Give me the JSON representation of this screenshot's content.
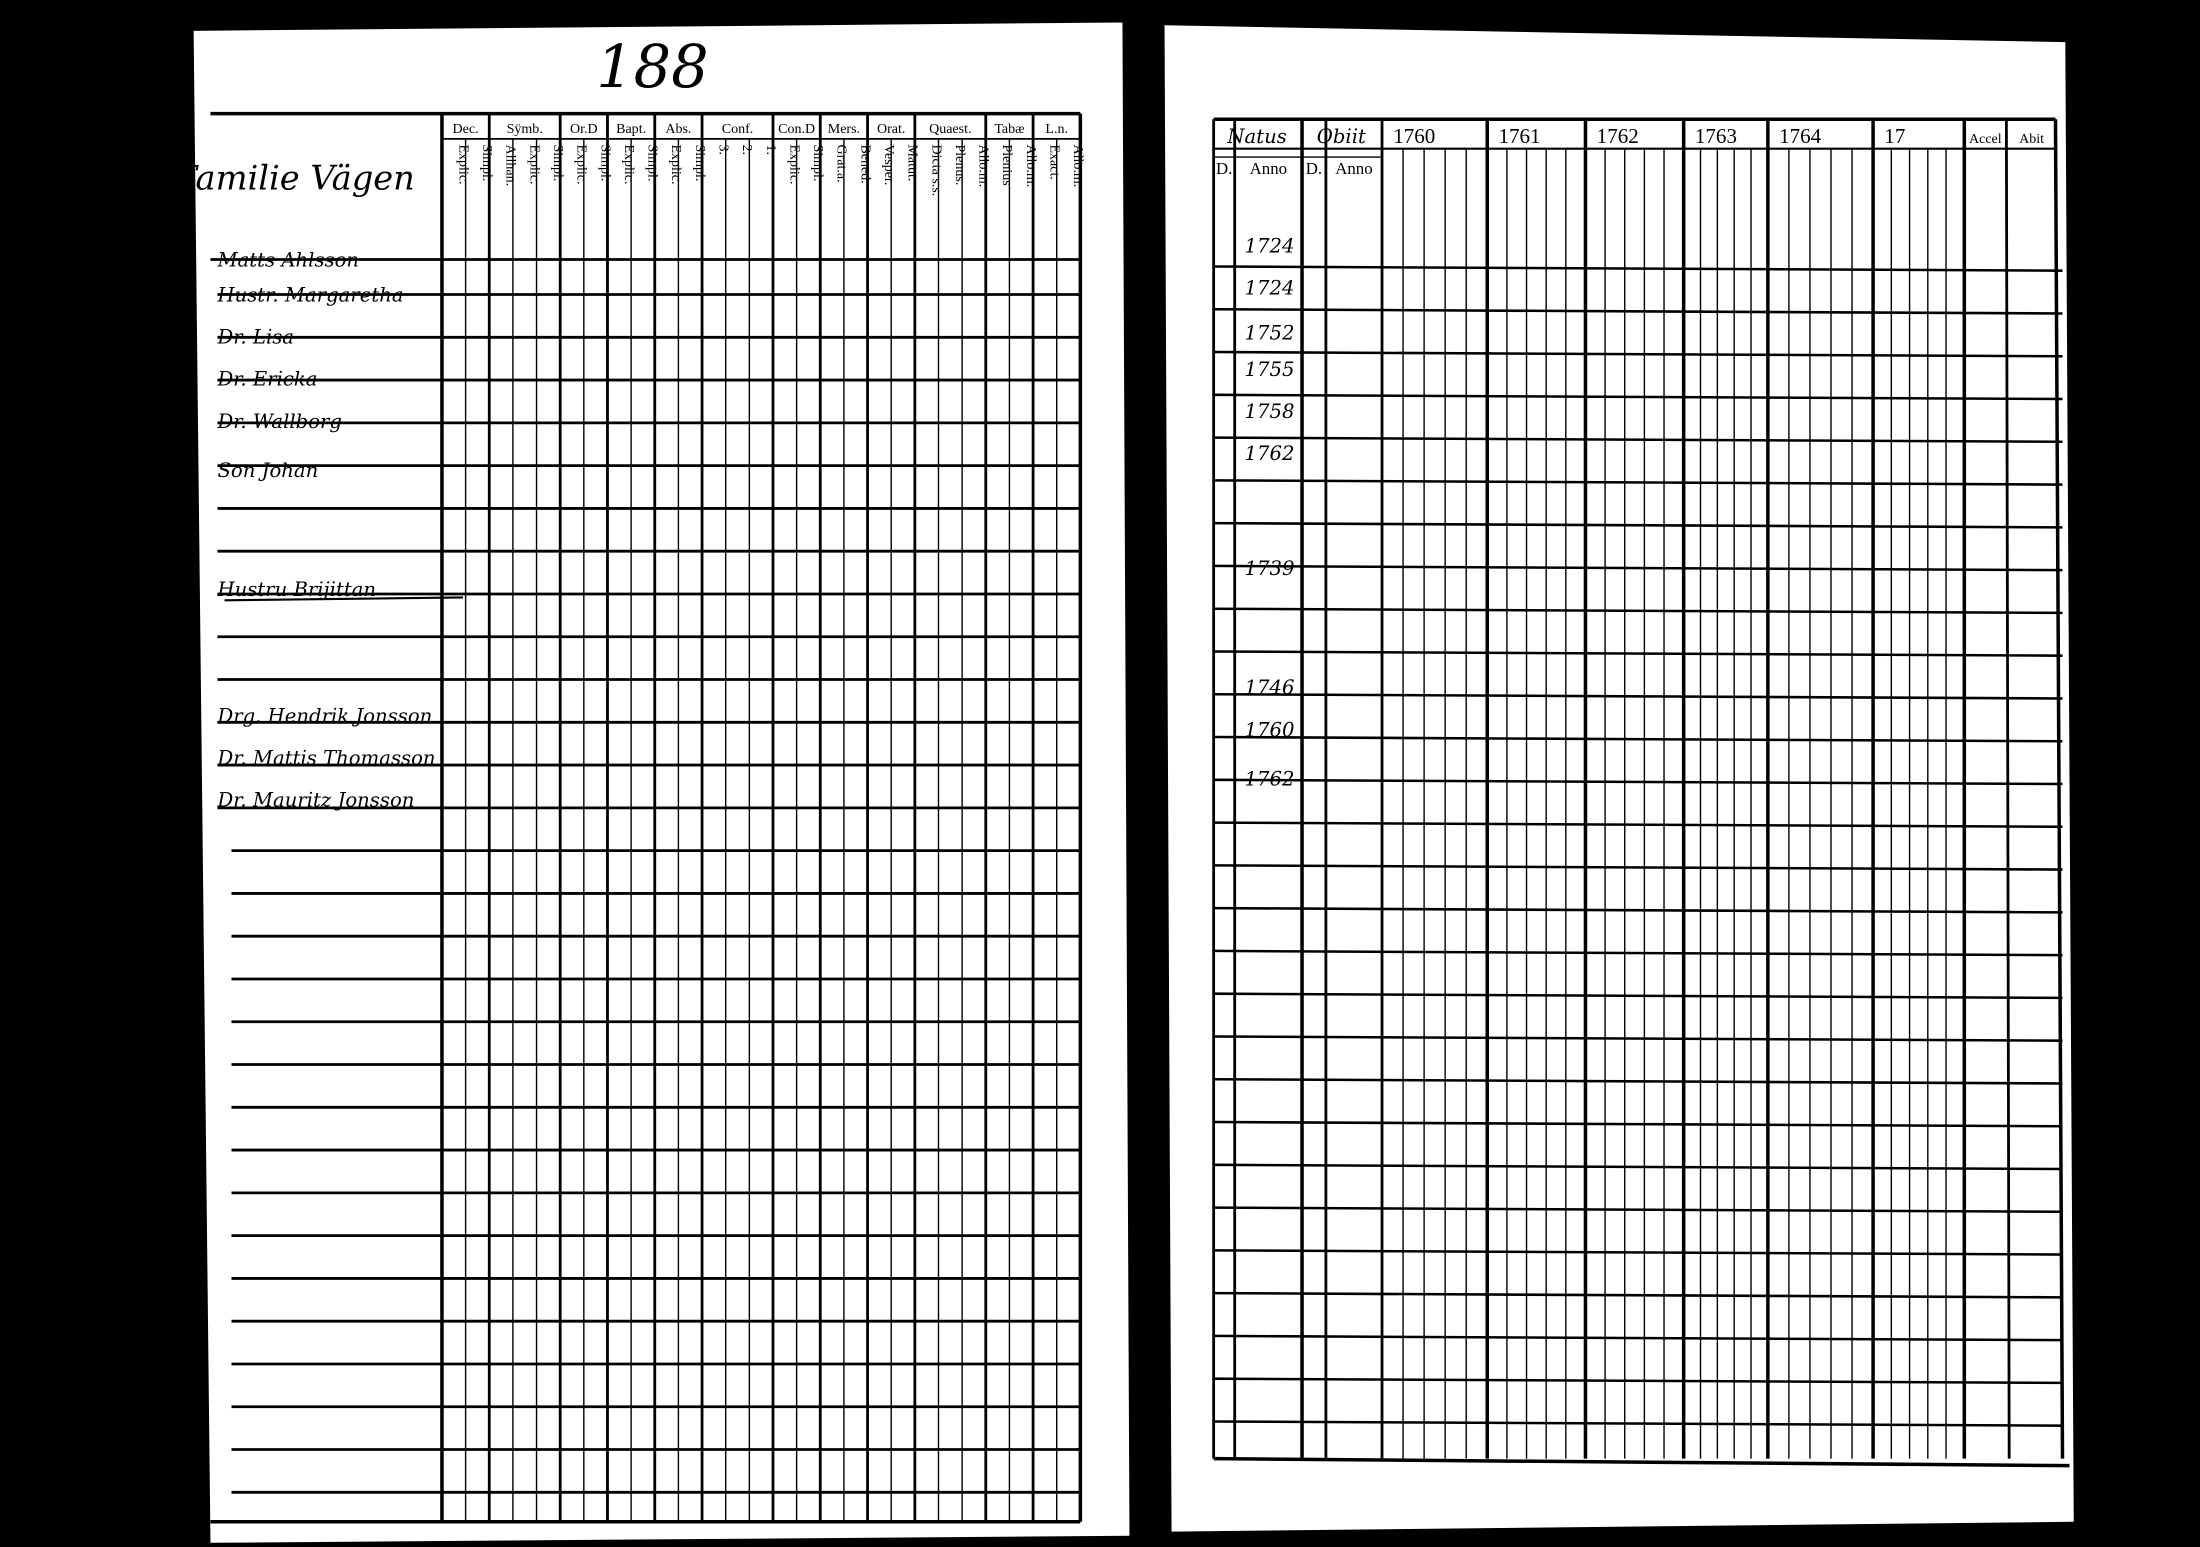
{
  "page_number": "188",
  "left_page": {
    "place": "Familie Vägen",
    "headers": [
      {
        "title": "Dec.",
        "sub": [
          "Explic.",
          "Simpl."
        ]
      },
      {
        "title": "Sÿmb.",
        "sub": [
          "Allhan.",
          "Explic.",
          "Simpl."
        ]
      },
      {
        "title": "Or.D",
        "sub": [
          "Explic.",
          "Simpl."
        ]
      },
      {
        "title": "Bapt.",
        "sub": [
          "Explic.",
          "Simpl."
        ]
      },
      {
        "title": "Abs.",
        "sub": [
          "Explic.",
          "Simpl."
        ]
      },
      {
        "title": "Conf.",
        "sub": [
          "3.",
          "2.",
          "1."
        ]
      },
      {
        "title": "Con.D",
        "sub": [
          "Explic.",
          "Simpl."
        ]
      },
      {
        "title": "Mers.",
        "sub": [
          "Grat.a.",
          "Bened."
        ]
      },
      {
        "title": "Orat.",
        "sub": [
          "Vesper.",
          "Matut."
        ]
      },
      {
        "title": "Quaest.",
        "sub": [
          "Dicta s.s.",
          "Plenus.",
          "Allo.m."
        ]
      },
      {
        "title": "Tabæ",
        "sub": [
          "Plenius",
          "Allo.m."
        ]
      },
      {
        "title": "L.n.",
        "sub": [
          "Exact.",
          "Allo.m."
        ]
      }
    ],
    "names": [
      "Matts Ahlsson",
      "Hustr. Margaretha",
      "Dr. Lisa",
      "Dr. Ericka",
      "Dr. Wallborg",
      "Son Johan",
      "Hustru Brijittan",
      "Drg. Hendrik Jonsson",
      "Dr. Mattis Thomasson",
      "Dr. Mauritz Jonsson"
    ]
  },
  "right_page": {
    "natus": "Natus",
    "obiit": "Obiit",
    "sub": [
      "D.",
      "Anno",
      "D.",
      "Anno"
    ],
    "years": [
      "1760",
      "1761",
      "1762",
      "1763",
      "1764",
      "17"
    ],
    "accel": "Accel",
    "abit": "Abit",
    "birth_years": [
      "1724",
      "1724",
      "1752",
      "1755",
      "1758",
      "1762",
      "1739",
      "1746",
      "1760",
      "1762"
    ]
  }
}
